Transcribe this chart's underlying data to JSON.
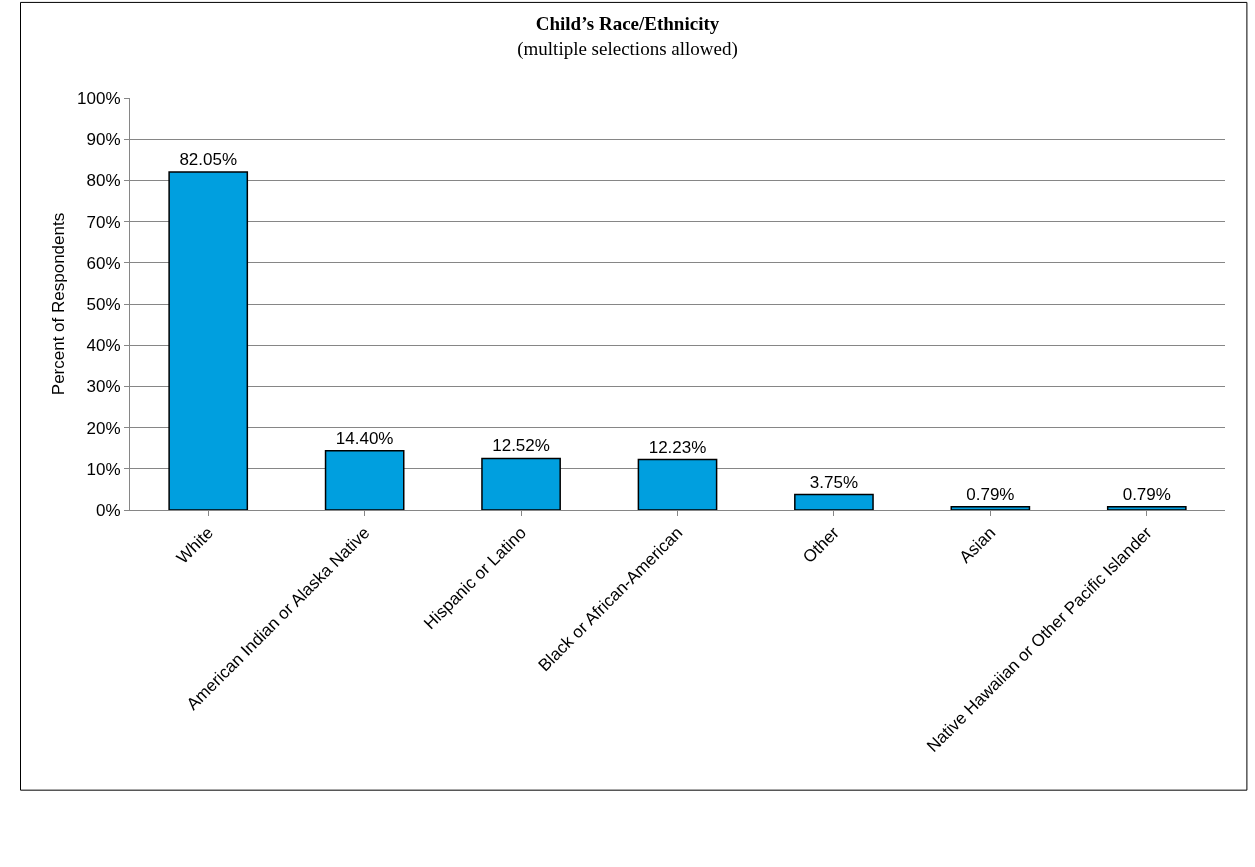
{
  "chart_data": {
    "type": "bar",
    "title": "Child’s Race/Ethnicity",
    "subtitle": "(multiple selections allowed)",
    "ylabel": "Percent of Respondents",
    "categories": [
      "White",
      "American Indian or Alaska Native",
      "Hispanic or Latino",
      "Black or African-American",
      "Other",
      "Asian",
      "Native Hawaiian or Other Pacific Islander"
    ],
    "values": [
      82.05,
      14.4,
      12.52,
      12.23,
      3.75,
      0.79,
      0.79
    ],
    "value_labels": [
      "82.05%",
      "14.40%",
      "12.52%",
      "12.23%",
      "3.75%",
      "0.79%",
      "0.79%"
    ],
    "color": "#009fdf",
    "ylim": [
      0,
      100
    ],
    "yticks": [
      {
        "value": 0,
        "label": "0%"
      },
      {
        "value": 10,
        "label": "10%"
      },
      {
        "value": 20,
        "label": "20%"
      },
      {
        "value": 30,
        "label": "30%"
      },
      {
        "value": 40,
        "label": "40%"
      },
      {
        "value": 50,
        "label": "50%"
      },
      {
        "value": 60,
        "label": "60%"
      },
      {
        "value": 70,
        "label": "70%"
      },
      {
        "value": 80,
        "label": "80%"
      },
      {
        "value": 90,
        "label": "90%"
      },
      {
        "value": 100,
        "label": "100%"
      }
    ],
    "grid": "y",
    "legend": false
  }
}
